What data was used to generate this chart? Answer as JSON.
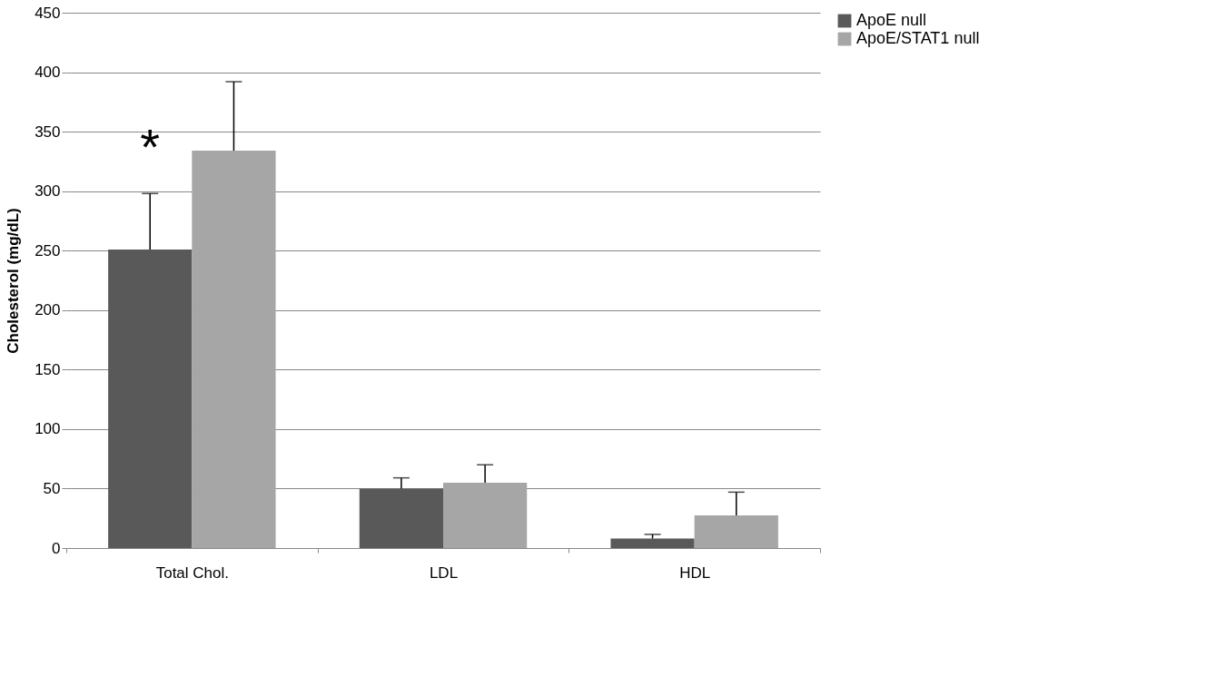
{
  "chart_data": {
    "type": "bar",
    "ylabel": "Cholesterol (mg/dL)",
    "categories": [
      "Total Chol.",
      "LDL",
      "HDL"
    ],
    "series": [
      {
        "name": "ApoE null",
        "color": "#595959",
        "values": [
          251,
          50,
          8
        ],
        "errors": [
          [
            251,
            298
          ],
          [
            50,
            59
          ],
          [
            8,
            11.5
          ]
        ]
      },
      {
        "name": "ApoE/STAT1 null",
        "color": "#a6a6a6",
        "values": [
          334,
          55,
          27.5
        ],
        "errors": [
          [
            334,
            392
          ],
          [
            55,
            70
          ],
          [
            27.5,
            47
          ]
        ]
      }
    ],
    "ylim": [
      0,
      450
    ],
    "yticks": [
      0,
      50,
      100,
      150,
      200,
      250,
      300,
      350,
      400,
      450
    ],
    "grid": "y",
    "legend": "right",
    "annotations": [
      {
        "text": "*",
        "x": "Total Chol.",
        "y": 330
      }
    ]
  }
}
